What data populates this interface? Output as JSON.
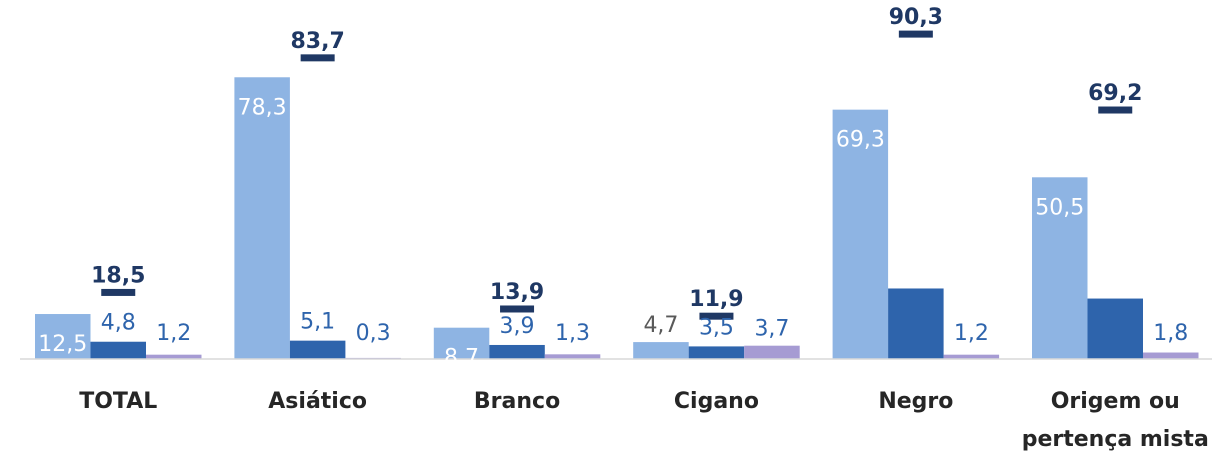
{
  "chart_data": {
    "type": "bar",
    "categories": [
      [
        "TOTAL"
      ],
      [
        "Asiático"
      ],
      [
        "Branco"
      ],
      [
        "Cigano"
      ],
      [
        "Negro"
      ],
      [
        "Origem ou",
        "pertença mista"
      ]
    ],
    "series": [
      {
        "values": [
          12.5,
          78.3,
          8.7,
          4.7,
          69.3,
          50.5
        ],
        "labels": [
          "12,5",
          "78,3",
          "8,7",
          "4,7",
          "69,3",
          "50,5"
        ],
        "color": "#8eb4e3"
      },
      {
        "values": [
          4.8,
          5.1,
          3.9,
          3.5,
          19.6,
          16.8
        ],
        "labels": [
          "4,8",
          "5,1",
          "3,9",
          "3,5",
          "",
          ""
        ],
        "color": "#2e64ac"
      },
      {
        "values": [
          1.2,
          0.3,
          1.3,
          3.7,
          1.2,
          1.8
        ],
        "labels": [
          "1,2",
          "0,3",
          "1,3",
          "3,7",
          "1,2",
          "1,8"
        ],
        "color": "#a69bd3"
      }
    ],
    "markers": {
      "values": [
        18.5,
        83.7,
        13.9,
        11.9,
        90.3,
        69.2
      ],
      "labels": [
        "18,5",
        "83,7",
        "13,9",
        "11,9",
        "90,3",
        "69,2"
      ],
      "color": "#1f3864"
    },
    "ylim": [
      0,
      100
    ],
    "grid": false,
    "legend": "none"
  },
  "colors": {
    "axis": "#d9d9d9",
    "label_on_bar": "#ffffff",
    "label_blue": "#2e64ac",
    "label_gray": "#595959"
  }
}
